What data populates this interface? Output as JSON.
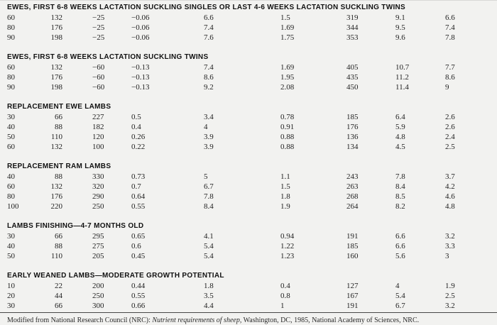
{
  "table": {
    "sections": [
      {
        "header": "EWES, FIRST 6-8 WEEKS LACTATION SUCKLING SINGLES OR LAST 4-6 WEEKS LACTATION SUCKLING TWINS",
        "rows": [
          [
            "60",
            "132",
            "−25",
            "−0.06",
            "6.6",
            "1.5",
            "319",
            "9.1",
            "6.6"
          ],
          [
            "80",
            "176",
            "−25",
            "−0.06",
            "7.4",
            "1.69",
            "344",
            "9.5",
            "7.4"
          ],
          [
            "90",
            "198",
            "−25",
            "−0.06",
            "7.6",
            "1.75",
            "353",
            "9.6",
            "7.8"
          ]
        ]
      },
      {
        "header": "EWES, FIRST 6-8 WEEKS LACTATION SUCKLING TWINS",
        "rows": [
          [
            "60",
            "132",
            "−60",
            "−0.13",
            "7.4",
            "1.69",
            "405",
            "10.7",
            "7.7"
          ],
          [
            "80",
            "176",
            "−60",
            "−0.13",
            "8.6",
            "1.95",
            "435",
            "11.2",
            "8.6"
          ],
          [
            "90",
            "198",
            "−60",
            "−0.13",
            "9.2",
            "2.08",
            "450",
            "11.4",
            "9"
          ]
        ]
      },
      {
        "header": "REPLACEMENT EWE LAMBS",
        "rows": [
          [
            "30",
            "66",
            "227",
            "0.5",
            "3.4",
            "0.78",
            "185",
            "6.4",
            "2.6"
          ],
          [
            "40",
            "88",
            "182",
            "0.4",
            "4",
            "0.91",
            "176",
            "5.9",
            "2.6"
          ],
          [
            "50",
            "110",
            "120",
            "0.26",
            "3.9",
            "0.88",
            "136",
            "4.8",
            "2.4"
          ],
          [
            "60",
            "132",
            "100",
            "0.22",
            "3.9",
            "0.88",
            "134",
            "4.5",
            "2.5"
          ]
        ]
      },
      {
        "header": "REPLACEMENT RAM LAMBS",
        "rows": [
          [
            "40",
            "88",
            "330",
            "0.73",
            "5",
            "1.1",
            "243",
            "7.8",
            "3.7"
          ],
          [
            "60",
            "132",
            "320",
            "0.7",
            "6.7",
            "1.5",
            "263",
            "8.4",
            "4.2"
          ],
          [
            "80",
            "176",
            "290",
            "0.64",
            "7.8",
            "1.8",
            "268",
            "8.5",
            "4.6"
          ],
          [
            "100",
            "220",
            "250",
            "0.55",
            "8.4",
            "1.9",
            "264",
            "8.2",
            "4.8"
          ]
        ]
      },
      {
        "header": "LAMBS FINISHING—4-7 MONTHS OLD",
        "rows": [
          [
            "30",
            "66",
            "295",
            "0.65",
            "4.1",
            "0.94",
            "191",
            "6.6",
            "3.2"
          ],
          [
            "40",
            "88",
            "275",
            "0.6",
            "5.4",
            "1.22",
            "185",
            "6.6",
            "3.3"
          ],
          [
            "50",
            "110",
            "205",
            "0.45",
            "5.4",
            "1.23",
            "160",
            "5.6",
            "3"
          ]
        ]
      },
      {
        "header": "EARLY WEANED LAMBS—MODERATE GROWTH POTENTIAL",
        "rows": [
          [
            "10",
            "22",
            "200",
            "0.44",
            "1.8",
            "0.4",
            "127",
            "4",
            "1.9"
          ],
          [
            "20",
            "44",
            "250",
            "0.55",
            "3.5",
            "0.8",
            "167",
            "5.4",
            "2.5"
          ],
          [
            "30",
            "66",
            "300",
            "0.66",
            "4.4",
            "1",
            "191",
            "6.7",
            "3.2"
          ]
        ]
      }
    ]
  },
  "footnote": {
    "prefix": "Modified from National Research Council (NRC): ",
    "italic": "Nutrient requirements of sheep,",
    "suffix": " Washington, DC, 1985, National Academy of Sciences, NRC."
  },
  "colors": {
    "background": "#f2f2f0",
    "text": "#1f1f1f",
    "rule": "#474747"
  }
}
